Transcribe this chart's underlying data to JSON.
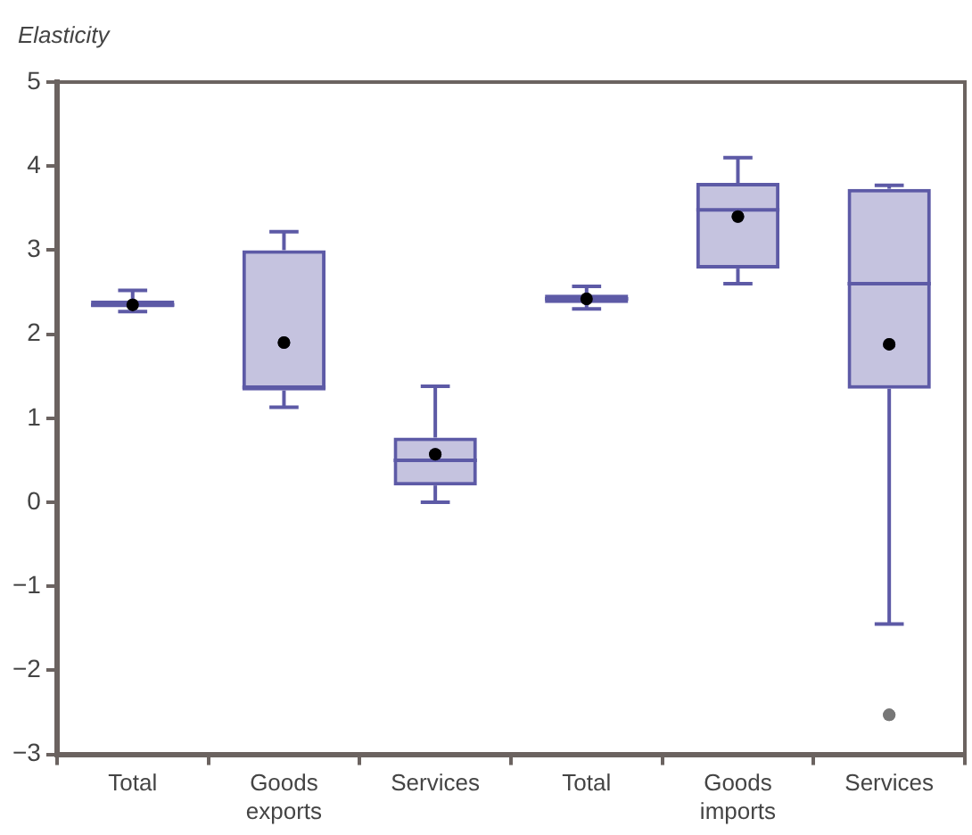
{
  "chart_data": {
    "type": "box",
    "ylabel": "Elasticity",
    "categories": [
      "Total",
      "Goods exports",
      "Services",
      "Total",
      "Goods imports",
      "Services"
    ],
    "boxes": [
      {
        "low": 2.27,
        "q1": 2.32,
        "median": 2.35,
        "q3": 2.4,
        "high": 2.52,
        "mean": 2.35
      },
      {
        "low": 1.13,
        "q1": 1.33,
        "median": 1.37,
        "q3": 3.0,
        "high": 3.22,
        "mean": 1.9
      },
      {
        "low": 0.0,
        "q1": 0.2,
        "median": 0.5,
        "q3": 0.77,
        "high": 1.38,
        "mean": 0.57
      },
      {
        "low": 2.3,
        "q1": 2.37,
        "median": 2.42,
        "q3": 2.47,
        "high": 2.57,
        "mean": 2.42
      },
      {
        "low": 2.6,
        "q1": 2.78,
        "median": 3.48,
        "q3": 3.8,
        "high": 4.1,
        "mean": 3.4
      },
      {
        "low": -1.45,
        "q1": 1.35,
        "median": 2.6,
        "q3": 3.73,
        "high": 3.77,
        "mean": 1.88,
        "outliers": [
          -2.53
        ]
      }
    ],
    "color": "#5d5aa6",
    "ylim": [
      -3,
      5
    ],
    "yticks": [
      {
        "value": -3,
        "label": "−3"
      },
      {
        "value": -2,
        "label": "−2"
      },
      {
        "value": -1,
        "label": "−1"
      },
      0,
      1,
      2,
      3,
      4,
      5
    ],
    "grid": false
  }
}
